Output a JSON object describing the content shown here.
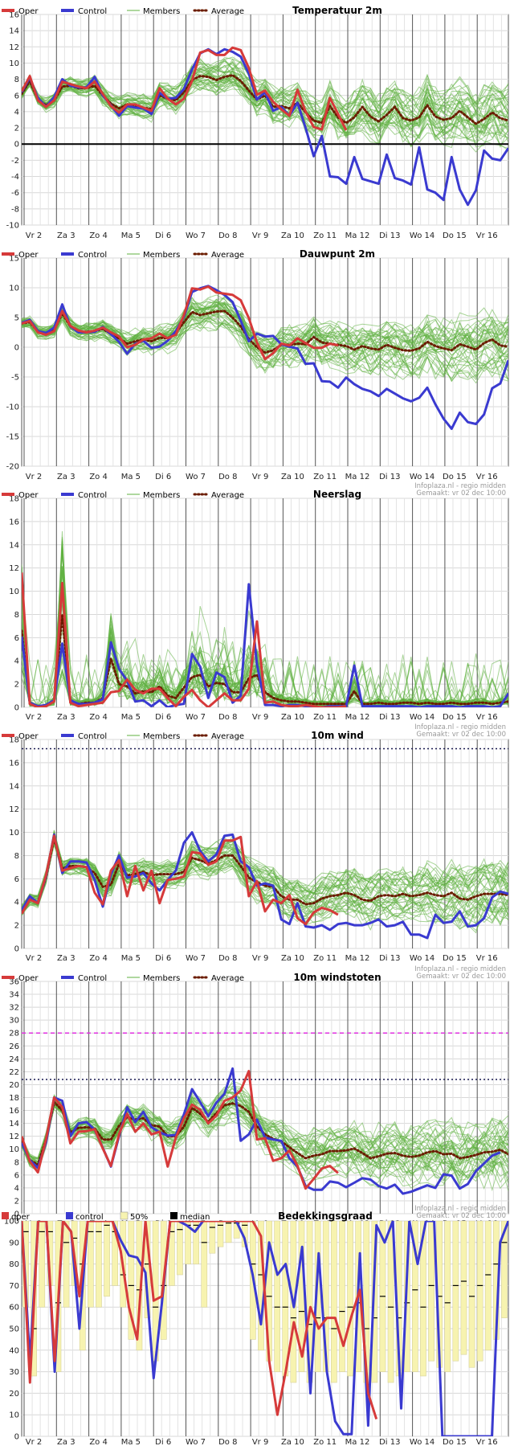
{
  "header": {
    "site": "Infoplaza.nl - regio midden",
    "made": "Gemaakt: vr 02 dec 10:00"
  },
  "days": [
    "Vr 2",
    "Za 3",
    "Zo 4",
    "Ma 5",
    "Di 6",
    "Wo 7",
    "Do 8",
    "Vr 9",
    "Za 10",
    "Zo 11",
    "Ma 12",
    "Di 13",
    "Wo 14",
    "Do 15",
    "Vr 16"
  ],
  "legend_line": {
    "oper": "Oper",
    "control": "Control",
    "members": "Members",
    "average": "Average"
  },
  "legend_cloud": {
    "oper": "oper",
    "control": "control",
    "band": "50%",
    "median": "median"
  },
  "colors": {
    "oper": "#d63a3a",
    "control": "#3a3ad0",
    "members": "#5fb03f",
    "average": "#6b1c00",
    "band": "#f7f3b0"
  },
  "chart_data": [
    {
      "id": "temp",
      "type": "line",
      "title": "Temperatuur 2m",
      "ylim": [
        -10,
        16
      ],
      "ystep": 2,
      "zero_line": true,
      "show_header": false,
      "oper": [
        6.5,
        8.4,
        5.4,
        4.6,
        5.4,
        7.7,
        7.4,
        7.1,
        6.9,
        7.7,
        6.2,
        4.7,
        3.9,
        4.9,
        4.9,
        4.5,
        4.1,
        6.9,
        5.6,
        4.9,
        5.6,
        7.8,
        11.3,
        11.6,
        11.0,
        11.0,
        11.9,
        11.6,
        9.4,
        6.1,
        6.6,
        5.2,
        4.3,
        3.5,
        6.7,
        4.0,
        2.1,
        1.8,
        5.7,
        3.7,
        1.7
      ],
      "control": [
        6.4,
        8.2,
        5.7,
        4.6,
        5.8,
        8.0,
        7.2,
        7.0,
        7.0,
        8.3,
        6.0,
        4.8,
        3.5,
        4.7,
        4.5,
        4.4,
        3.7,
        6.3,
        5.6,
        5.7,
        6.8,
        9.2,
        11.2,
        11.7,
        11.1,
        11.7,
        11.4,
        10.8,
        8.7,
        5.5,
        6.4,
        4.1,
        4.6,
        3.5,
        5.1,
        2.0,
        -1.5,
        1.0,
        -4.0,
        -4.1,
        -4.9,
        -1.6,
        -4.3,
        -4.6,
        -4.9,
        -1.3,
        -4.2,
        -4.5,
        -5.0,
        -0.4,
        -5.6,
        -6.0,
        -6.9,
        -1.6,
        -5.6,
        -7.5,
        -5.7,
        -0.8,
        -1.8,
        -2.0,
        -0.5
      ],
      "average": [
        6.2,
        7.8,
        5.5,
        4.8,
        5.4,
        7.1,
        7.2,
        6.9,
        6.9,
        7.2,
        6.0,
        5.0,
        4.4,
        4.9,
        4.6,
        4.5,
        4.3,
        6.0,
        5.6,
        5.4,
        6.4,
        7.9,
        8.4,
        8.3,
        7.9,
        8.3,
        8.5,
        7.8,
        6.6,
        5.5,
        6.0,
        4.6,
        4.7,
        4.4,
        5.1,
        3.9,
        2.9,
        2.6,
        4.7,
        3.3,
        2.6,
        3.3,
        4.6,
        3.4,
        2.8,
        3.6,
        4.6,
        3.2,
        2.9,
        3.3,
        4.8,
        3.4,
        3.0,
        3.2,
        4.1,
        3.3,
        2.5,
        3.1,
        3.9,
        3.2,
        2.9
      ]
    },
    {
      "id": "dew",
      "type": "line",
      "title": "Dauwpunt 2m",
      "ylim": [
        -20,
        15
      ],
      "ystep": 5,
      "zero_line": false,
      "show_header": false,
      "oper": [
        4.0,
        4.4,
        2.5,
        2.1,
        2.7,
        6.1,
        3.6,
        2.8,
        2.5,
        2.8,
        3.3,
        2.5,
        1.8,
        0.0,
        0.4,
        1.3,
        1.5,
        2.3,
        1.5,
        2.1,
        5.4,
        9.9,
        9.7,
        10.2,
        9.2,
        9.0,
        8.8,
        7.9,
        4.9,
        0.8,
        -2.0,
        -1.0,
        0.6,
        0.3,
        1.5,
        0.7,
        -0.1,
        -0.1,
        0.6,
        0.3
      ],
      "control": [
        4.1,
        4.6,
        2.7,
        2.4,
        3.3,
        7.2,
        3.5,
        2.5,
        2.5,
        2.6,
        3.4,
        2.2,
        0.9,
        -1.1,
        0.6,
        1.1,
        -0.1,
        0.1,
        1.1,
        2.7,
        5.1,
        9.3,
        9.9,
        10.3,
        9.6,
        8.8,
        7.6,
        4.5,
        1.0,
        2.3,
        1.8,
        1.9,
        0.5,
        0.1,
        -0.2,
        -2.8,
        -2.7,
        -5.7,
        -5.8,
        -6.8,
        -5.1,
        -6.2,
        -7.0,
        -7.4,
        -8.2,
        -7.0,
        -7.8,
        -8.6,
        -9.1,
        -8.5,
        -6.8,
        -9.6,
        -12.0,
        -13.7,
        -11.0,
        -12.6,
        -12.9,
        -11.3,
        -6.9,
        -6.1,
        -2.2
      ],
      "average": [
        4.0,
        4.2,
        2.6,
        2.4,
        2.9,
        5.7,
        3.5,
        2.6,
        2.6,
        2.7,
        3.1,
        2.2,
        1.5,
        0.6,
        1.0,
        1.3,
        1.0,
        1.6,
        1.5,
        2.4,
        4.2,
        5.9,
        5.4,
        5.7,
        6.0,
        6.1,
        5.0,
        3.5,
        1.4,
        0.0,
        -0.9,
        -0.5,
        0.4,
        0.4,
        0.6,
        0.5,
        1.7,
        0.8,
        0.6,
        0.4,
        0.2,
        -0.4,
        0.2,
        -0.2,
        -0.4,
        0.4,
        -0.1,
        -0.5,
        -0.6,
        -0.2,
        0.9,
        0.2,
        -0.2,
        -0.5,
        0.5,
        0.1,
        -0.4,
        0.7,
        1.3,
        0.3,
        0.1
      ]
    },
    {
      "id": "rain",
      "type": "line",
      "title": "Neerslag",
      "ylim": [
        0,
        18
      ],
      "ystep": 2,
      "zero_line": false,
      "show_header": true,
      "oper": [
        11.6,
        0.3,
        0.0,
        0.1,
        0.5,
        10.7,
        0.4,
        0.1,
        0.2,
        0.3,
        0.4,
        1.3,
        1.4,
        2.4,
        1.5,
        1.2,
        1.6,
        1.6,
        0.8,
        0.1,
        0.9,
        1.5,
        0.6,
        0.0,
        0.6,
        1.2,
        0.6,
        0.6,
        1.6,
        7.4,
        0.4,
        0.5,
        0.2,
        0.1,
        0.1,
        0.2,
        0.1,
        0.0,
        0.0,
        0.0,
        0.1
      ],
      "control": [
        6.1,
        0.4,
        0.1,
        0.2,
        0.6,
        5.5,
        0.6,
        0.3,
        0.3,
        0.4,
        0.7,
        5.6,
        3.3,
        2.3,
        0.5,
        0.6,
        0.1,
        0.6,
        0.0,
        0.2,
        0.3,
        4.6,
        3.5,
        0.8,
        3.0,
        2.6,
        0.4,
        1.0,
        10.6,
        3.7,
        0.2,
        0.2,
        0.1,
        0.2,
        0.2,
        0.1,
        0.0,
        0.0,
        0.1,
        0.1,
        0.1,
        3.6,
        0.1,
        0.1,
        0.1,
        0.1,
        0.1,
        0.1,
        0.1,
        0.0,
        0.1,
        0.1,
        0.1,
        0.1,
        0.0,
        0.1,
        0.1,
        0.1,
        0.0,
        0.1,
        1.2
      ],
      "average": [
        6.6,
        0.3,
        0.1,
        0.1,
        0.5,
        8.0,
        0.5,
        0.3,
        0.4,
        0.4,
        0.8,
        4.2,
        2.0,
        1.8,
        1.2,
        1.4,
        1.3,
        1.8,
        1.0,
        0.8,
        1.7,
        2.6,
        2.8,
        1.8,
        2.1,
        2.0,
        1.3,
        1.3,
        2.5,
        2.8,
        1.3,
        0.8,
        0.6,
        0.5,
        0.5,
        0.4,
        0.3,
        0.3,
        0.3,
        0.3,
        0.3,
        1.4,
        0.3,
        0.3,
        0.4,
        0.3,
        0.3,
        0.4,
        0.4,
        0.3,
        0.4,
        0.3,
        0.3,
        0.4,
        0.3,
        0.3,
        0.4,
        0.4,
        0.3,
        0.4,
        0.5
      ]
    },
    {
      "id": "wind",
      "type": "line",
      "title": "10m wind",
      "ylim": [
        0,
        18
      ],
      "ystep": 2,
      "zero_line": false,
      "show_header": true,
      "threshold_dotted": 17.2,
      "oper": [
        3.0,
        4.2,
        3.9,
        6.3,
        9.7,
        6.7,
        6.9,
        7.1,
        7.0,
        4.8,
        3.8,
        6.7,
        7.6,
        4.5,
        7.1,
        5.0,
        6.7,
        3.9,
        5.9,
        6.0,
        6.2,
        8.3,
        8.2,
        7.2,
        7.5,
        9.3,
        9.3,
        9.6,
        4.5,
        5.8,
        3.2,
        4.2,
        3.9,
        4.6,
        2.6,
        2.1,
        3.1,
        3.5,
        3.3,
        2.9
      ],
      "control": [
        3.3,
        4.5,
        3.9,
        6.2,
        9.8,
        6.5,
        7.5,
        7.5,
        7.4,
        5.9,
        3.6,
        6.4,
        8.0,
        6.1,
        6.2,
        6.5,
        5.6,
        5.0,
        5.9,
        6.7,
        9.1,
        10.0,
        8.4,
        7.5,
        8.1,
        9.7,
        9.8,
        7.5,
        7.0,
        5.4,
        5.6,
        5.4,
        2.5,
        2.1,
        3.9,
        1.9,
        1.8,
        2.0,
        1.6,
        2.1,
        2.2,
        2.0,
        2.0,
        2.2,
        2.5,
        1.9,
        2.0,
        2.3,
        1.2,
        1.2,
        0.9,
        2.9,
        2.2,
        2.3,
        3.2,
        1.9,
        2.0,
        2.6,
        4.4,
        4.9,
        4.7
      ],
      "average": [
        3.2,
        4.2,
        4.0,
        6.1,
        9.5,
        6.9,
        7.1,
        7.1,
        7.0,
        6.5,
        5.3,
        5.5,
        7.3,
        6.3,
        6.4,
        6.6,
        6.3,
        6.4,
        6.4,
        6.4,
        6.6,
        7.8,
        7.6,
        7.3,
        7.6,
        8.0,
        8.0,
        7.1,
        6.1,
        5.7,
        5.4,
        5.3,
        4.5,
        4.2,
        4.2,
        3.8,
        3.9,
        4.3,
        4.5,
        4.6,
        4.8,
        4.6,
        4.2,
        4.1,
        4.5,
        4.6,
        4.5,
        4.7,
        4.5,
        4.6,
        4.8,
        4.6,
        4.5,
        4.8,
        4.3,
        4.2,
        4.5,
        4.7,
        4.7,
        4.7,
        4.6
      ]
    },
    {
      "id": "gust",
      "type": "line",
      "title": "10m windstoten",
      "ylim": [
        0,
        36
      ],
      "ystep": 2,
      "zero_line": false,
      "show_header": true,
      "threshold_dotted": 20.8,
      "threshold_dashed": 28.0,
      "oper": [
        12.0,
        8.1,
        6.4,
        11.5,
        18.0,
        16.5,
        10.9,
        12.7,
        12.8,
        13.1,
        10.1,
        7.4,
        12.3,
        15.5,
        12.7,
        14.0,
        12.3,
        12.7,
        7.3,
        11.8,
        14.8,
        16.9,
        16.1,
        14.0,
        15.2,
        17.5,
        18.0,
        19.1,
        22.1,
        11.5,
        11.7,
        8.2,
        8.6,
        9.8,
        7.4,
        3.9,
        5.4,
        7.0,
        7.4,
        6.3
      ],
      "control": [
        11.0,
        8.3,
        7.1,
        11.0,
        18.0,
        17.5,
        12.0,
        14.0,
        14.2,
        13.0,
        10.2,
        7.3,
        12.0,
        16.5,
        14.2,
        15.8,
        13.4,
        12.6,
        12.1,
        12.2,
        15.4,
        19.3,
        17.3,
        15.1,
        17.2,
        18.6,
        22.5,
        11.3,
        12.3,
        14.6,
        11.8,
        11.5,
        11.3,
        8.6,
        7.3,
        4.3,
        3.7,
        3.7,
        5.0,
        4.8,
        4.1,
        4.8,
        5.5,
        5.3,
        4.3,
        3.9,
        4.5,
        3.1,
        3.4,
        3.9,
        4.4,
        4.0,
        6.1,
        5.9,
        3.9,
        4.6,
        6.6,
        7.8,
        9.0,
        9.5
      ],
      "average": [
        11.2,
        8.3,
        7.6,
        11.5,
        17.3,
        16.0,
        12.6,
        13.3,
        13.4,
        13.2,
        11.5,
        11.5,
        13.6,
        15.0,
        14.6,
        14.8,
        13.7,
        13.5,
        12.0,
        12.0,
        13.5,
        16.4,
        15.5,
        14.2,
        15.6,
        16.8,
        17.1,
        16.7,
        15.8,
        13.5,
        12.3,
        11.6,
        11.2,
        10.3,
        9.4,
        8.6,
        9.0,
        9.2,
        9.7,
        9.7,
        9.8,
        10.1,
        9.4,
        8.6,
        8.9,
        9.3,
        9.4,
        9.0,
        8.8,
        9.0,
        9.5,
        9.7,
        9.2,
        9.3,
        8.6,
        8.8,
        9.1,
        9.5,
        9.6,
        9.9,
        9.2
      ]
    },
    {
      "id": "cloud",
      "type": "bar",
      "title": "Bedekkingsgraad",
      "ylim": [
        0,
        100
      ],
      "ystep": 10,
      "zero_line": false,
      "show_header": true,
      "oper": [
        100,
        25,
        100,
        100,
        35,
        100,
        95,
        65,
        100,
        100,
        100,
        100,
        86,
        60,
        45,
        100,
        63,
        65,
        100,
        100,
        100,
        100,
        100,
        100,
        100,
        100,
        100,
        100,
        100,
        93,
        35,
        10,
        30,
        53,
        37,
        60,
        50,
        55,
        55,
        42,
        56,
        68,
        20,
        8
      ],
      "control": [
        100,
        35,
        100,
        100,
        30,
        100,
        95,
        50,
        100,
        100,
        100,
        100,
        91,
        84,
        83,
        76,
        27,
        62,
        100,
        100,
        98,
        95,
        100,
        100,
        100,
        100,
        100,
        92,
        75,
        52,
        90,
        75,
        80,
        60,
        88,
        20,
        85,
        30,
        7,
        1,
        1,
        85,
        5,
        98,
        90,
        100,
        13,
        100,
        80,
        100,
        100,
        0,
        0,
        0,
        0,
        0,
        0,
        0,
        90,
        100
      ],
      "band_lo": [
        60,
        28,
        60,
        70,
        30,
        60,
        70,
        40,
        60,
        60,
        65,
        70,
        60,
        45,
        40,
        55,
        35,
        45,
        70,
        75,
        80,
        80,
        60,
        85,
        88,
        90,
        92,
        88,
        45,
        40,
        35,
        30,
        28,
        25,
        30,
        25,
        30,
        30,
        25,
        30,
        28,
        30,
        25,
        25,
        30,
        25,
        28,
        30,
        30,
        28,
        35,
        32,
        30,
        35,
        38,
        32,
        35,
        40,
        45,
        55
      ],
      "band_hi": [
        100,
        100,
        100,
        100,
        100,
        100,
        100,
        100,
        100,
        100,
        100,
        100,
        100,
        100,
        100,
        100,
        100,
        100,
        100,
        100,
        100,
        100,
        100,
        100,
        100,
        100,
        100,
        100,
        100,
        100,
        100,
        100,
        100,
        100,
        100,
        100,
        100,
        100,
        100,
        100,
        100,
        100,
        100,
        100,
        100,
        100,
        100,
        100,
        100,
        100,
        100,
        100,
        100,
        100,
        100,
        100,
        100,
        100,
        100,
        100
      ],
      "median": [
        95,
        50,
        95,
        95,
        62,
        90,
        92,
        80,
        95,
        95,
        98,
        95,
        75,
        70,
        68,
        80,
        60,
        70,
        95,
        96,
        98,
        98,
        90,
        97,
        98,
        99,
        99,
        98,
        80,
        75,
        65,
        60,
        60,
        55,
        58,
        52,
        55,
        55,
        50,
        58,
        60,
        62,
        50,
        55,
        65,
        60,
        55,
        62,
        68,
        60,
        70,
        65,
        62,
        70,
        72,
        65,
        70,
        75,
        80,
        90
      ]
    }
  ]
}
